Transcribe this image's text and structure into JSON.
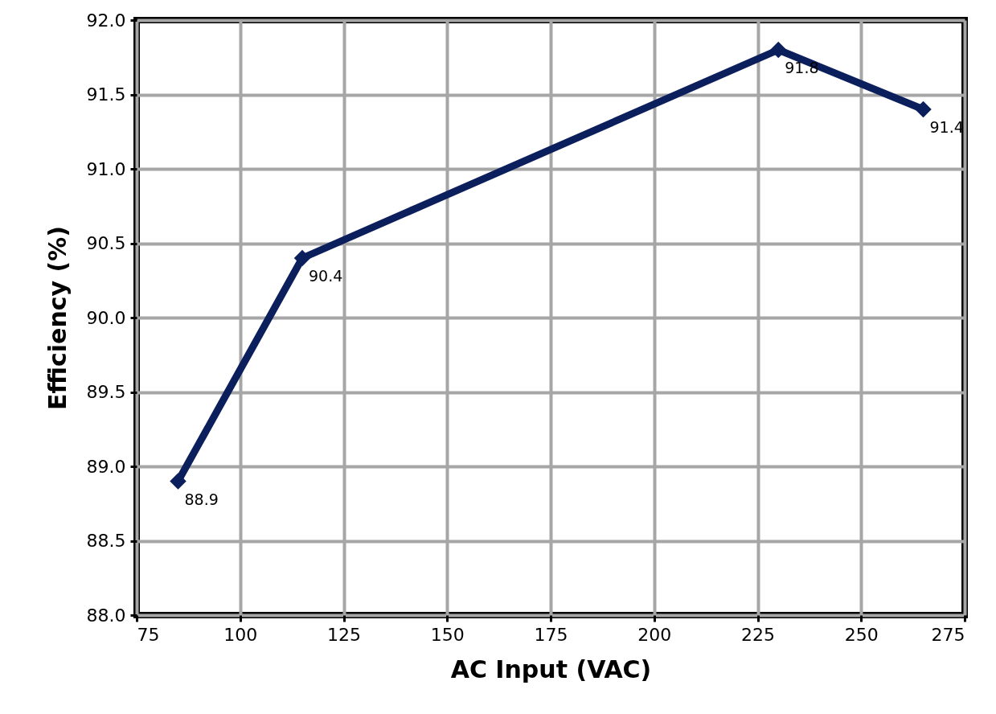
{
  "chart_data": {
    "type": "line",
    "xlabel": "AC Input (VAC)",
    "ylabel": "Efficiency (%)",
    "x": [
      85,
      115,
      230,
      265
    ],
    "series": [
      {
        "color": "#0a1f5c",
        "values": [
          88.9,
          90.4,
          91.8,
          91.4
        ]
      }
    ],
    "xlim": [
      75,
      275
    ],
    "xticks": [
      75,
      100,
      125,
      150,
      175,
      200,
      225,
      250,
      275
    ],
    "ylim": [
      88.0,
      92.0
    ],
    "yticks": [
      {
        "value": 88,
        "label": "88.0"
      },
      {
        "value": 88.5,
        "label": "88.5"
      },
      {
        "value": 89,
        "label": "89.0"
      },
      {
        "value": 89.5,
        "label": "89.5"
      },
      {
        "value": 90,
        "label": "90.0"
      },
      {
        "value": 90.5,
        "label": "90.5"
      },
      {
        "value": 91,
        "label": "91.0"
      },
      {
        "value": 91.5,
        "label": "91.5"
      },
      {
        "value": 92,
        "label": "92.0"
      }
    ],
    "grid": true,
    "marker": "diamond",
    "line_style": "solid",
    "data_labels": true
  }
}
